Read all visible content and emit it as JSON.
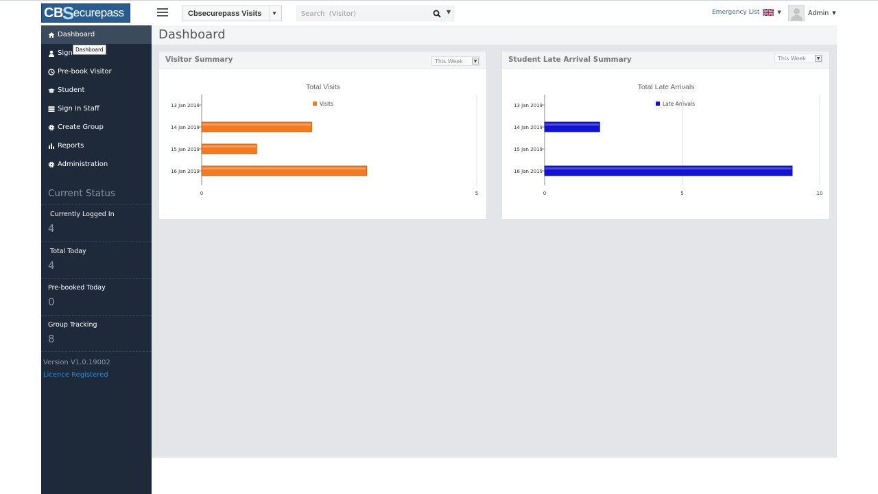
{
  "app": {
    "logo_cb": "CB",
    "logo_s": "S",
    "logo_rest": "ecurepass",
    "visits_select": "Cbsecurepass Visits",
    "search_placeholder": "Search  (Visitor)",
    "emergency_list": "Emergency List",
    "user_name": "Admin"
  },
  "sidebar": {
    "items": [
      {
        "label": "Dashboard",
        "icon": "home-icon",
        "active": true
      },
      {
        "label": "Sign In Visitor",
        "icon": "user-icon"
      },
      {
        "label": "Pre-book Visitor",
        "icon": "clock-icon"
      },
      {
        "label": "Student",
        "icon": "graduation-cap-icon"
      },
      {
        "label": "Sign In Staff",
        "icon": "list-icon"
      },
      {
        "label": "Create Group",
        "icon": "gear-icon"
      },
      {
        "label": "Reports",
        "icon": "bar-chart-icon"
      },
      {
        "label": "Administration",
        "icon": "gear-icon"
      }
    ],
    "tooltip": "Dashboard",
    "status_title": "Current Status",
    "status": [
      {
        "label": "Currently Logged In",
        "value": "4"
      },
      {
        "label": "Total Today",
        "value": "4"
      },
      {
        "label": "Pre-booked Today",
        "value": "0"
      },
      {
        "label": "Group Tracking",
        "value": "8"
      }
    ],
    "version": "Version V1.0.19002",
    "licence": "Licence Registered"
  },
  "main": {
    "title": "Dashboard",
    "visitor_panel": {
      "title": "Visitor Summary",
      "range": "This Week"
    },
    "late_panel": {
      "title": "Student Late Arrival Summary",
      "range": "This Week"
    }
  },
  "chart_data": [
    {
      "type": "bar",
      "orientation": "horizontal",
      "title": "Total Visits",
      "categories": [
        "13 Jan 2019",
        "14 Jan 2019",
        "15 Jan 2019",
        "16 Jan 2019"
      ],
      "series": [
        {
          "name": "Visits",
          "values": [
            0,
            2,
            1,
            3
          ],
          "color": "#f47a20"
        }
      ],
      "xlim": [
        0,
        5
      ],
      "xticks": [
        "0",
        "5"
      ],
      "grid": true,
      "legend": "top"
    },
    {
      "type": "bar",
      "orientation": "horizontal",
      "title": "Total Late Arrivals",
      "categories": [
        "13 Jan 2019",
        "14 Jan 2019",
        "15 Jan 2019",
        "16 Jan 2019"
      ],
      "series": [
        {
          "name": "Late Arrivals",
          "values": [
            0,
            2,
            0,
            9
          ],
          "color": "#1212d6"
        }
      ],
      "xlim": [
        0,
        10
      ],
      "xticks": [
        "0",
        "5",
        "10"
      ],
      "grid": true,
      "legend": "top"
    }
  ]
}
